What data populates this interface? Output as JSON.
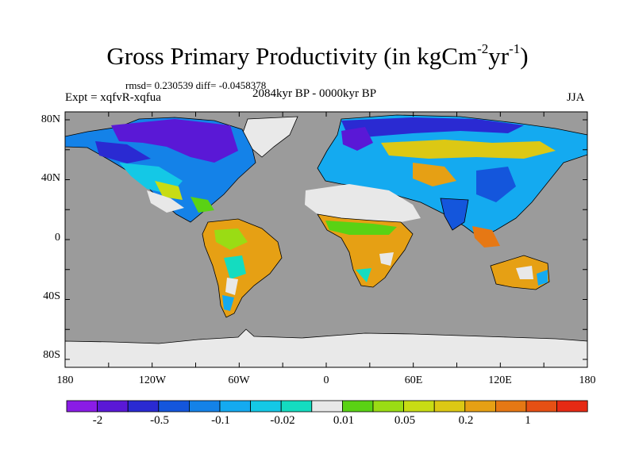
{
  "header": {
    "title_main": "Gross Primary Productivity (in kgCm",
    "title_exp1": "-2",
    "title_mid": "yr",
    "title_exp2": "-1",
    "title_end": ")",
    "stats": "rmsd= 0.230539 diff= -0.0458378",
    "experiment": "Expt = xqfvR-xqfua",
    "period": "2084kyr BP - 0000kyr BP",
    "season": "JJA"
  },
  "map": {
    "lat_labels": [
      "80N",
      "40N",
      "0",
      "40S",
      "80S"
    ],
    "lon_labels": [
      "180",
      "120W",
      "60W",
      "0",
      "60E",
      "120E",
      "180"
    ],
    "ocean_color": "#9b9b9b",
    "missing_color": "#e9e9e9"
  },
  "colorbar": {
    "colors": [
      "#8a1ce6",
      "#5a18d6",
      "#2a2ad2",
      "#1456dc",
      "#1482e8",
      "#14aaf0",
      "#14c8e6",
      "#14dcc0",
      "#e8e8e8",
      "#5ad214",
      "#9adc14",
      "#c8dc14",
      "#dcc814",
      "#e6a014",
      "#e67814",
      "#e65014",
      "#e62a14"
    ],
    "labels": [
      "-2",
      "-0.5",
      "-0.1",
      "-0.02",
      "0.01",
      "0.05",
      "0.2",
      "1"
    ]
  }
}
